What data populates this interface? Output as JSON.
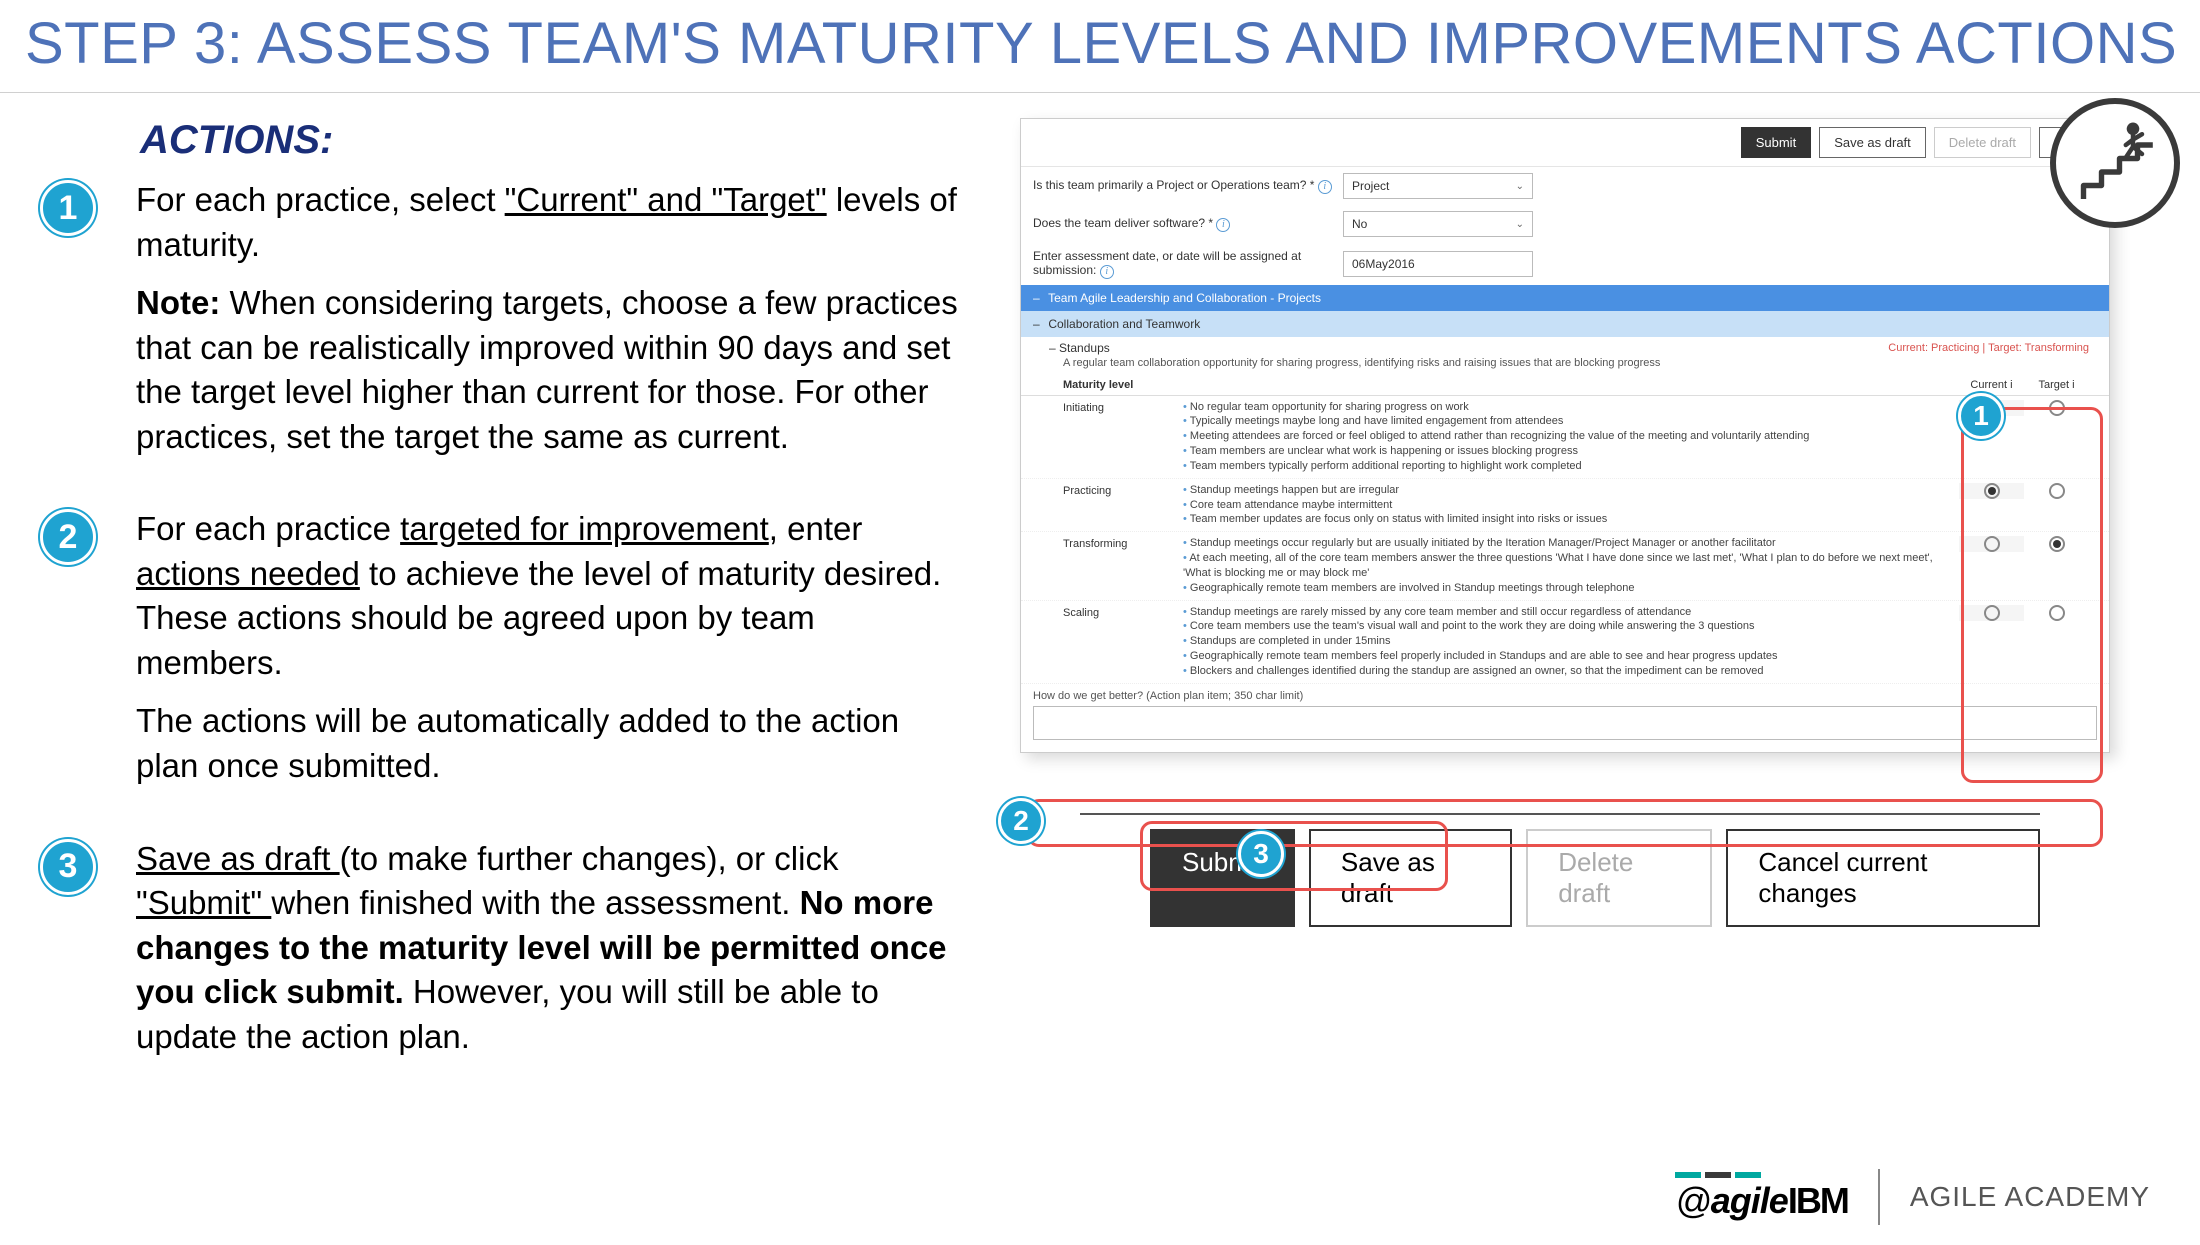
{
  "theme": {
    "title_color": "#4e72b8",
    "accent_blue": "#1fa3d1",
    "heading_navy": "#1a2e78",
    "highlight_red": "#e9514d",
    "status_red": "#d9534f",
    "section_dark_bg": "#4a90e2",
    "section_light_bg": "#c7e0f7",
    "button_dark_bg": "#333333",
    "info_icon_color": "#5a9bd4",
    "brand_bar_colors": [
      "#00a8a0",
      "#3a3a3a",
      "#00a8a0"
    ]
  },
  "slide": {
    "title": "STEP 3: ASSESS TEAM'S MATURITY LEVELS AND IMPROVEMENTS ACTIONS",
    "actions_heading": "ACTIONS:"
  },
  "actions": [
    {
      "num": "1",
      "html_lead": "For each practice, select ",
      "underline1": "\"Current\" and \"Target\"",
      "tail1": " levels of maturity.",
      "note_label": "Note:",
      "note_body": " When considering targets, choose a few practices that can be realistically improved within 90 days and set the target level higher than current for those.  For other practices, set the target the same as current."
    },
    {
      "num": "2",
      "lead": "For each practice ",
      "u1": "targeted for improvement",
      "mid": ", enter ",
      "u2": "actions needed",
      "tail": " to achieve the level of maturity desired. These actions should be agreed upon by team members.",
      "p2": "The actions will be automatically added to the action plan once submitted."
    },
    {
      "num": "3",
      "u1": "Save as draft ",
      "mid1": "(to make further changes), or click ",
      "u2": "\"Submit\" ",
      "mid2": "when finished with the assessment. ",
      "bold": "No more changes to the maturity level will be permitted once you click submit.",
      "tail": "  However, you will still be able to update the action plan."
    }
  ],
  "screenshot": {
    "toolbar": {
      "submit": "Submit",
      "save_draft": "Save as draft",
      "delete_draft": "Delete draft",
      "cancel": "Cancel cu"
    },
    "form": {
      "q1_label": "Is this team primarily a Project or Operations team? *",
      "q1_value": "Project",
      "q2_label": "Does the team deliver software? *",
      "q2_value": "No",
      "q3_label": "Enter assessment date, or date will be assigned at submission:",
      "q3_value": "06May2016"
    },
    "sections": {
      "outer": "Team Agile Leadership and Collaboration - Projects",
      "inner": "Collaboration and Teamwork"
    },
    "practice": {
      "name": "Standups",
      "status": "Current: Practicing | Target: Transforming",
      "desc": "A regular team collaboration opportunity for sharing progress, identifying risks and raising issues that are blocking progress",
      "maturity_label": "Maturity level",
      "col_current": "Current",
      "col_target": "Target"
    },
    "levels": [
      {
        "name": "Initiating",
        "bullets": [
          "No regular team opportunity for sharing progress on work",
          "Typically meetings maybe long and have limited engagement from attendees",
          "Meeting attendees are forced or feel obliged to attend rather than recognizing the value of the meeting and voluntarily attending",
          "Team members are unclear what work is happening or issues blocking progress",
          "Team members typically perform additional reporting to highlight work completed"
        ],
        "current_selected": false,
        "target_selected": false
      },
      {
        "name": "Practicing",
        "bullets": [
          "Standup meetings happen but are irregular",
          "Core team attendance maybe intermittent",
          "Team member updates are focus only on status with limited insight into risks or issues"
        ],
        "current_selected": true,
        "target_selected": false
      },
      {
        "name": "Transforming",
        "bullets": [
          "Standup meetings occur regularly but are usually initiated by the Iteration Manager/Project Manager or another facilitator",
          "At each meeting, all of the core team members answer the three questions 'What I have done since we last met', 'What I plan to do before we next meet', 'What is blocking me or may block me'",
          "Geographically remote team members are involved in Standup meetings through telephone"
        ],
        "current_selected": false,
        "target_selected": true
      },
      {
        "name": "Scaling",
        "bullets": [
          "Standup meetings are rarely missed by any core team member and still occur regardless of attendance",
          "Core team members use the team's visual wall and point to the work they are doing while answering the 3 questions",
          "Standups are completed in under 15mins",
          "Geographically remote team members feel properly included in Standups and are able to see and hear progress updates",
          "Blockers and challenges identified during the standup are assigned an owner, so that the impediment can be removed"
        ],
        "current_selected": false,
        "target_selected": false
      }
    ],
    "action_input_label": "How do we get better? (Action plan item; 350 char limit)"
  },
  "bottom_buttons": {
    "submit": "Submit",
    "save_draft": "Save as draft",
    "delete_draft": "Delete draft",
    "cancel": "Cancel current changes"
  },
  "footer": {
    "brand_at": "@",
    "brand_agile": "agile",
    "brand_ibm": "IBM",
    "academy": "AGILE ACADEMY"
  },
  "callouts": {
    "c1": "1",
    "c2": "2",
    "c3": "3"
  }
}
